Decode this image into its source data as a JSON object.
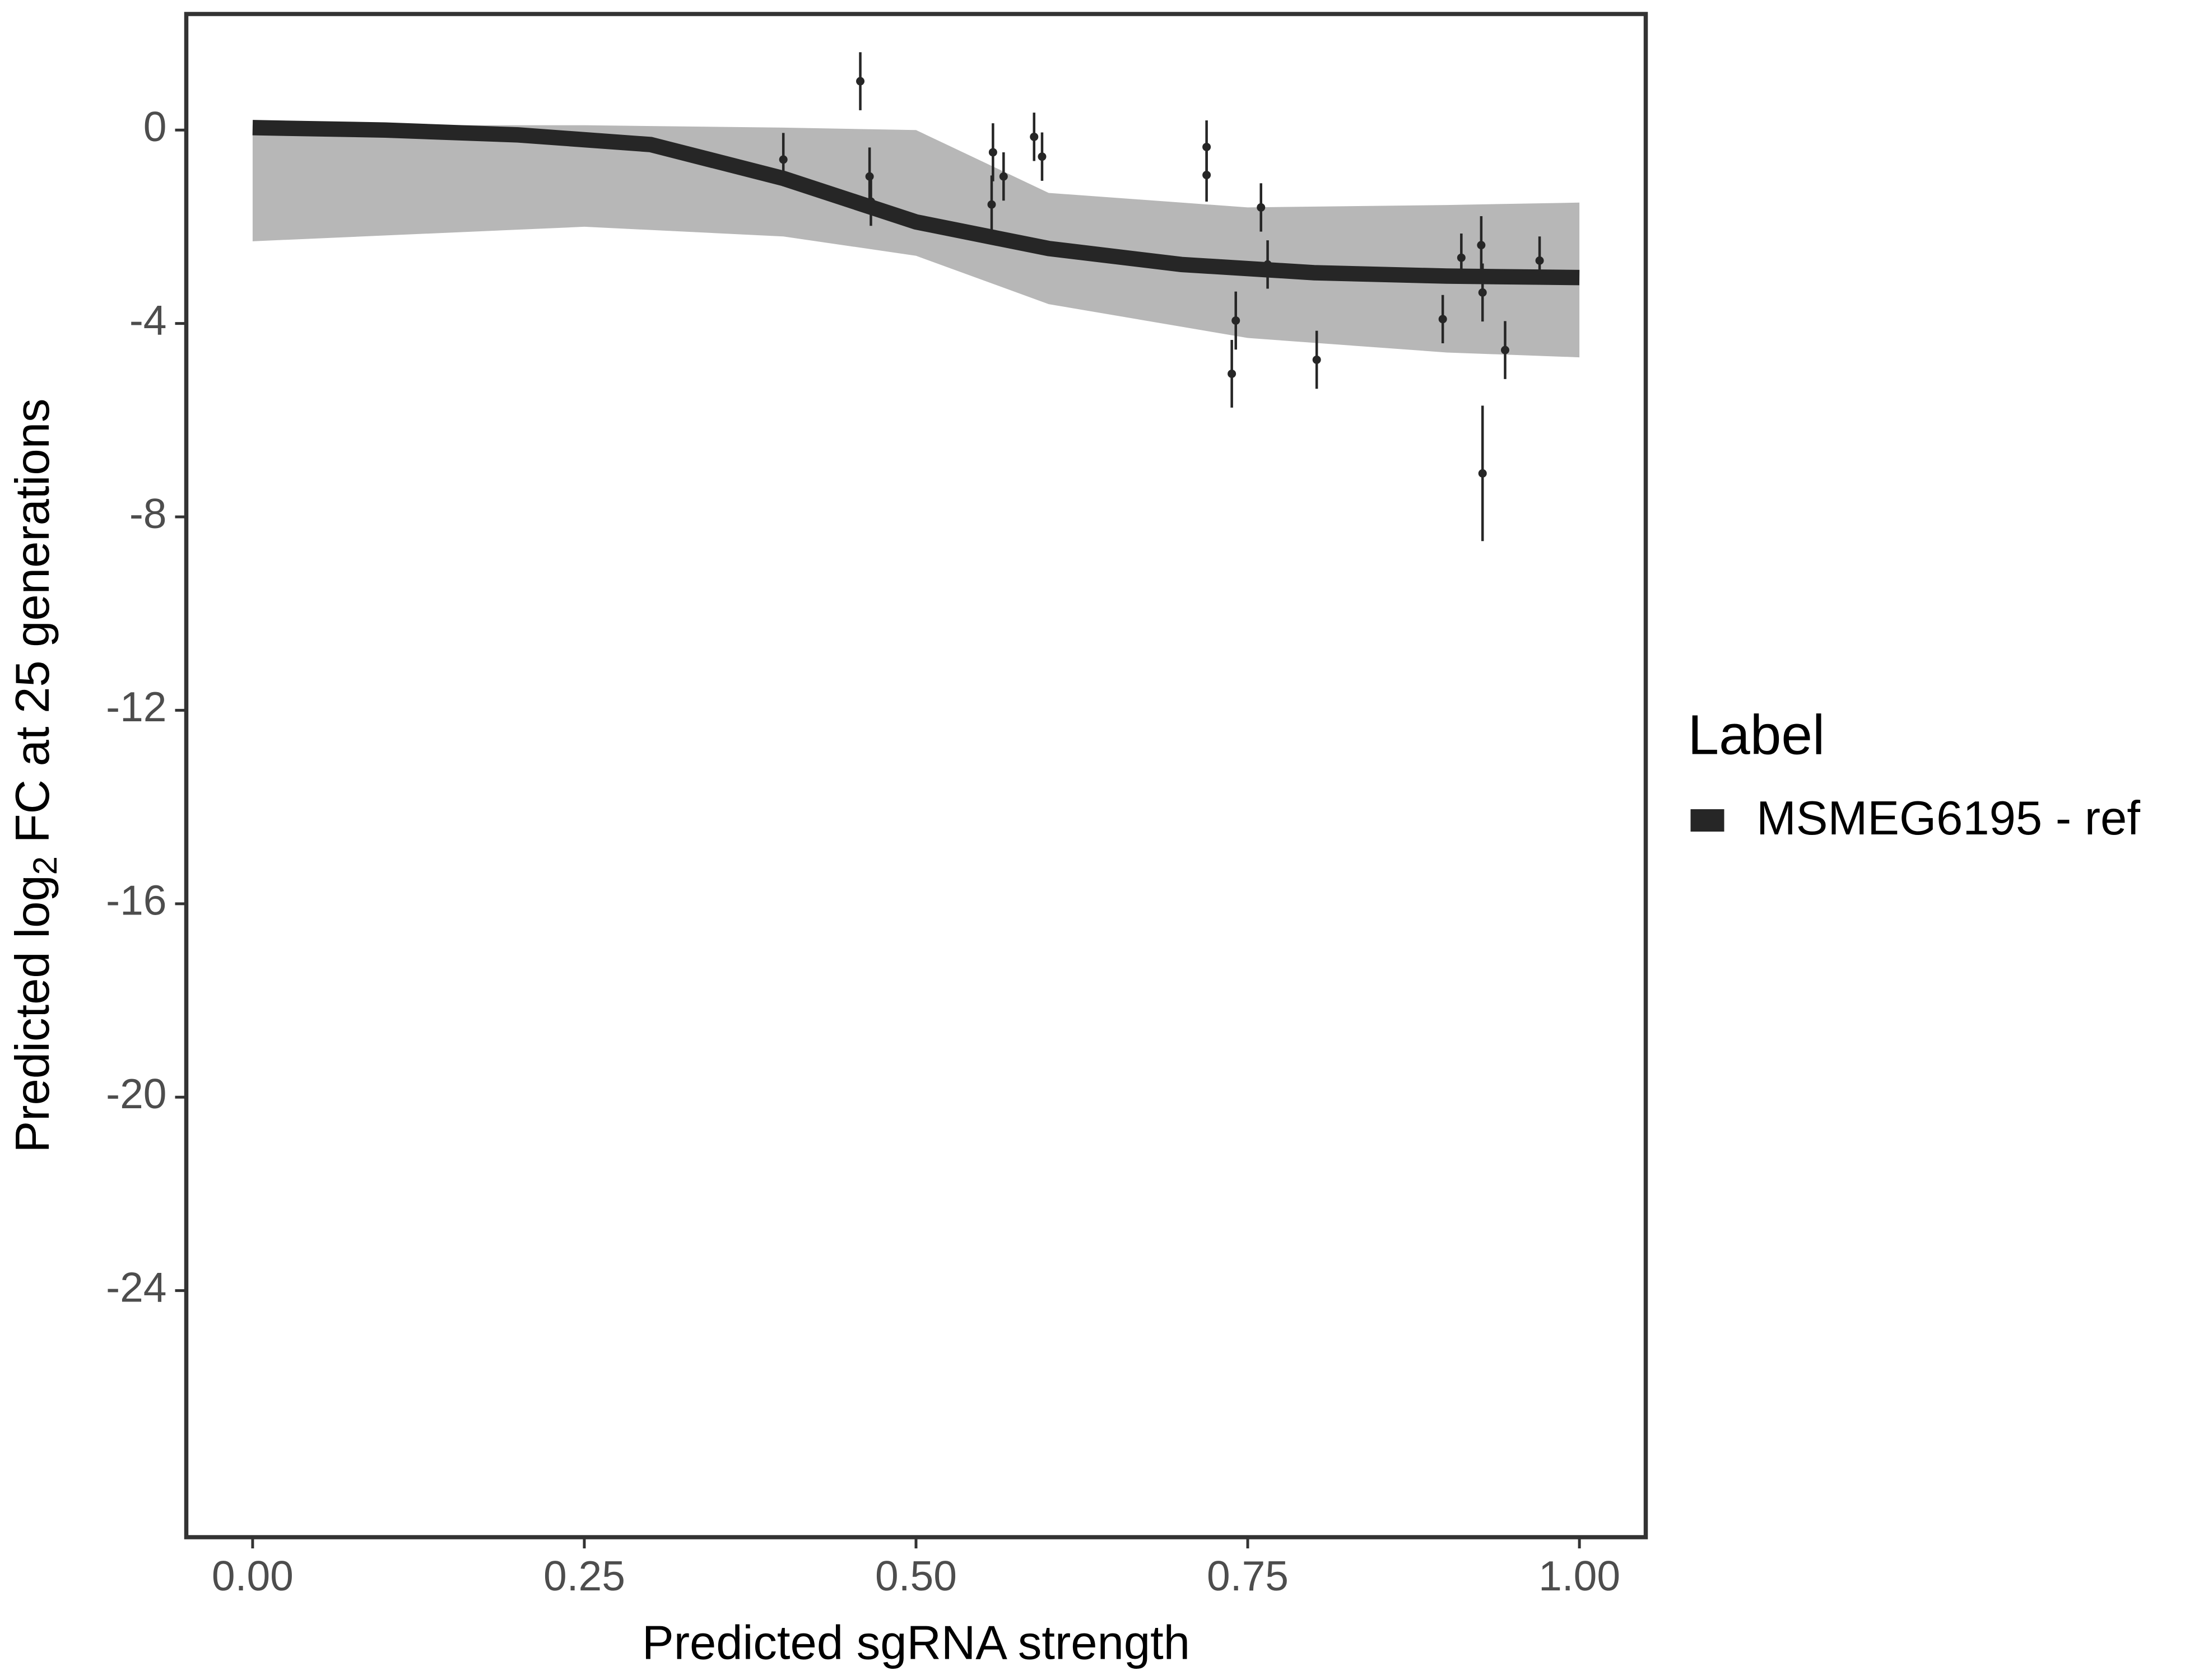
{
  "chart_data": {
    "type": "scatter",
    "xlabel": "Predicted sgRNA strength",
    "ylabel": [
      "Predicted  log",
      "2",
      " FC at 25 generations"
    ],
    "legend_title": "Label",
    "legend_position": "right",
    "xlim": [
      -0.05,
      1.05
    ],
    "ylim": [
      -29.1,
      2.4
    ],
    "xticks": [
      {
        "value": 0,
        "label": "0.00"
      },
      {
        "value": 0.25,
        "label": "0.25"
      },
      {
        "value": 0.5,
        "label": "0.50"
      },
      {
        "value": 0.75,
        "label": "0.75"
      },
      {
        "value": 1,
        "label": "1.00"
      }
    ],
    "yticks": [
      0,
      -4,
      -8,
      -12,
      -16,
      -20,
      -24
    ],
    "band": {
      "color": "#aaaaaa",
      "x": [
        0,
        0.25,
        0.4,
        0.5,
        0.6,
        0.75,
        0.9,
        1
      ],
      "upper": [
        0.1,
        0.1,
        0.05,
        0,
        -1.3,
        -1.6,
        -1.55,
        -1.5
      ],
      "lower": [
        -2.3,
        -2.0,
        -2.2,
        -2.6,
        -3.6,
        -4.3,
        -4.6,
        -4.7
      ]
    },
    "series": [
      {
        "name": "MSMEG6195 - ref",
        "color": "#262626",
        "x": [
          0,
          0.1,
          0.2,
          0.3,
          0.4,
          0.5,
          0.6,
          0.7,
          0.8,
          0.9,
          1
        ],
        "values": [
          0.05,
          0.0,
          -0.1,
          -0.3,
          -1.0,
          -1.9,
          -2.45,
          -2.78,
          -2.95,
          -3.02,
          -3.05
        ]
      }
    ],
    "points": {
      "color": "#262626",
      "x": [
        0.4,
        0.458,
        0.465,
        0.466,
        0.558,
        0.557,
        0.566,
        0.589,
        0.595,
        0.719,
        0.719,
        0.76,
        0.765,
        0.741,
        0.738,
        0.802,
        0.897,
        0.911,
        0.926,
        0.927,
        0.927,
        0.944,
        0.97
      ],
      "y": [
        -0.61,
        1.01,
        -0.96,
        -1.48,
        -0.46,
        -1.54,
        -0.96,
        -0.14,
        -0.55,
        -0.35,
        -0.93,
        -1.6,
        -2.78,
        -3.94,
        -5.04,
        -4.75,
        -3.91,
        -2.64,
        -2.38,
        -3.36,
        -7.1,
        -4.55,
        -2.7
      ],
      "err": [
        0.55,
        0.6,
        0.6,
        0.5,
        0.6,
        0.6,
        0.5,
        0.5,
        0.5,
        0.55,
        0.55,
        0.5,
        0.5,
        0.6,
        0.7,
        0.6,
        0.5,
        0.5,
        0.6,
        0.6,
        1.4,
        0.6,
        0.5
      ]
    }
  }
}
